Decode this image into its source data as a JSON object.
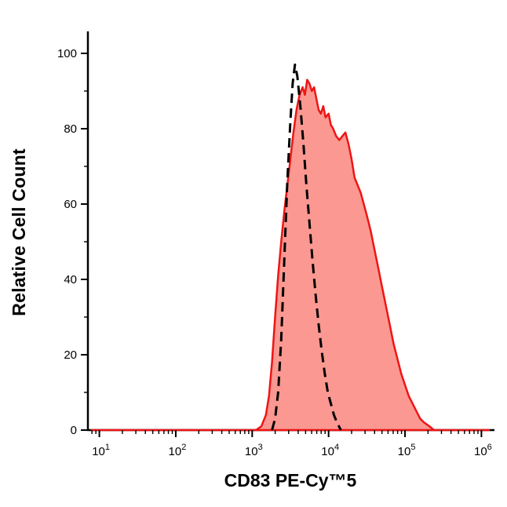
{
  "frame": {
    "background_color": "#ffffff"
  },
  "chart_data": {
    "type": "area",
    "subtype": "flow-cytometry-histogram",
    "title": "",
    "xlabel": "CD83 PE-Cy™5",
    "ylabel": "Relative Cell Count",
    "x_scale": "log",
    "xlog_range": [
      0.85,
      6.15
    ],
    "ylim": [
      0,
      100
    ],
    "y_ticks": [
      0,
      20,
      40,
      60,
      80,
      100
    ],
    "y_minor_step": 10,
    "x_decades": [
      1,
      2,
      3,
      4,
      5,
      6
    ],
    "x_tick_base": "10",
    "grid": false,
    "legend_position": "none",
    "axis_color": "#000000",
    "series": [
      {
        "name": "CD83 PE-Cy5 stained sample (red filled histogram)",
        "style": "filled",
        "stroke": "#ee1515",
        "stroke_width": 2.5,
        "fill": "#f9867e",
        "fill_opacity": 0.85,
        "points": [
          [
            0.9,
            0
          ],
          [
            1.5,
            0
          ],
          [
            2.0,
            0
          ],
          [
            2.5,
            0
          ],
          [
            2.9,
            0
          ],
          [
            3.05,
            0
          ],
          [
            3.12,
            1
          ],
          [
            3.18,
            4
          ],
          [
            3.22,
            9
          ],
          [
            3.26,
            18
          ],
          [
            3.3,
            30
          ],
          [
            3.34,
            41
          ],
          [
            3.38,
            50
          ],
          [
            3.42,
            58
          ],
          [
            3.46,
            65
          ],
          [
            3.5,
            72
          ],
          [
            3.54,
            79
          ],
          [
            3.58,
            85
          ],
          [
            3.62,
            89
          ],
          [
            3.66,
            91
          ],
          [
            3.69,
            89
          ],
          [
            3.72,
            93
          ],
          [
            3.75,
            92
          ],
          [
            3.78,
            90
          ],
          [
            3.81,
            91
          ],
          [
            3.84,
            88
          ],
          [
            3.87,
            85
          ],
          [
            3.9,
            84
          ],
          [
            3.93,
            86
          ],
          [
            3.96,
            83
          ],
          [
            4.0,
            84
          ],
          [
            4.03,
            81
          ],
          [
            4.06,
            80
          ],
          [
            4.1,
            78
          ],
          [
            4.14,
            77
          ],
          [
            4.18,
            78
          ],
          [
            4.22,
            79
          ],
          [
            4.26,
            76
          ],
          [
            4.3,
            72
          ],
          [
            4.34,
            67
          ],
          [
            4.38,
            65
          ],
          [
            4.42,
            63
          ],
          [
            4.46,
            60
          ],
          [
            4.5,
            57
          ],
          [
            4.55,
            53
          ],
          [
            4.6,
            48
          ],
          [
            4.65,
            43
          ],
          [
            4.7,
            38
          ],
          [
            4.75,
            33
          ],
          [
            4.8,
            28
          ],
          [
            4.85,
            23
          ],
          [
            4.9,
            19
          ],
          [
            4.95,
            15
          ],
          [
            5.0,
            12
          ],
          [
            5.05,
            9
          ],
          [
            5.1,
            7
          ],
          [
            5.15,
            5
          ],
          [
            5.2,
            3
          ],
          [
            5.25,
            2
          ],
          [
            5.32,
            1
          ],
          [
            5.38,
            0
          ],
          [
            5.6,
            0
          ],
          [
            6.1,
            0
          ]
        ]
      },
      {
        "name": "isotype control (black dashed histogram)",
        "style": "dashed",
        "stroke": "#000000",
        "stroke_width": 3,
        "dash_pattern": "12 7",
        "points": [
          [
            3.26,
            0
          ],
          [
            3.3,
            3
          ],
          [
            3.34,
            10
          ],
          [
            3.38,
            24
          ],
          [
            3.42,
            45
          ],
          [
            3.46,
            66
          ],
          [
            3.5,
            82
          ],
          [
            3.53,
            92
          ],
          [
            3.56,
            97
          ],
          [
            3.59,
            94
          ],
          [
            3.63,
            86
          ],
          [
            3.67,
            76
          ],
          [
            3.71,
            65
          ],
          [
            3.75,
            55
          ],
          [
            3.79,
            45
          ],
          [
            3.83,
            36
          ],
          [
            3.87,
            28
          ],
          [
            3.91,
            21
          ],
          [
            3.95,
            15
          ],
          [
            3.99,
            10
          ],
          [
            4.03,
            7
          ],
          [
            4.07,
            4
          ],
          [
            4.11,
            2
          ],
          [
            4.16,
            0
          ]
        ]
      }
    ]
  }
}
